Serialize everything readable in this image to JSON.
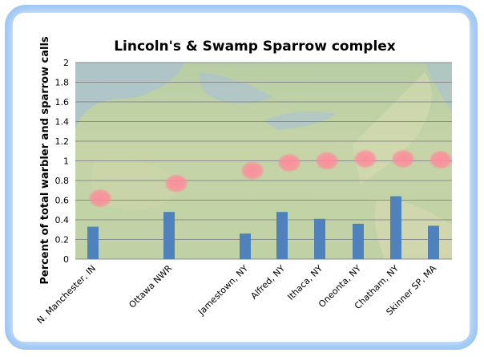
{
  "chart_data": {
    "type": "bar",
    "title": "Lincoln's & Swamp Sparrow complex",
    "xlabel": "",
    "ylabel": "Percent of total warbler and sparrow calls",
    "ylim": [
      0,
      2
    ],
    "yticks": [
      "0",
      "0.2",
      "0.4",
      "0.6",
      "0.8",
      "1",
      "1.2",
      "1.4",
      "1.6",
      "1.8",
      "2"
    ],
    "grid": true,
    "categories": [
      "N. Manchester, IN",
      "Ottawa NWR",
      "Jamestown, NY",
      "Alfred, NY",
      "Ithaca, NY",
      "Oneonta, NY",
      "Chatham, NY",
      "Skinner SP, MA"
    ],
    "values": [
      0.33,
      0.48,
      0.26,
      0.48,
      0.41,
      0.36,
      0.64,
      0.34
    ],
    "marker_values": [
      0.62,
      0.77,
      0.9,
      0.98,
      1.0,
      1.02,
      1.02,
      1.01
    ],
    "colors": {
      "bar": "#4f81bd",
      "marker": "#ff8a9a",
      "grid": "#8c8c8c",
      "frame_glow": "#9cc6f5"
    }
  }
}
